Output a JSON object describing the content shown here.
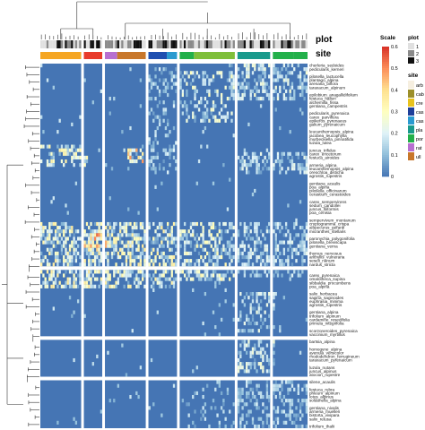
{
  "chart_data": {
    "type": "heatmap",
    "title": "",
    "xlabel": "",
    "ylabel": "",
    "annotations": {
      "plot_title": "plot",
      "site_title": "site"
    },
    "column_groups": [
      {
        "id": 1,
        "columns": 20
      },
      {
        "id": 2,
        "columns": 9
      },
      {
        "id": 3,
        "columns": 20
      },
      {
        "id": 4,
        "columns": 14
      },
      {
        "id": 5,
        "columns": 27
      },
      {
        "id": 6,
        "columns": 16
      },
      {
        "id": 7,
        "columns": 17
      }
    ],
    "row_groups": [
      {
        "id": 1,
        "rows": 55
      },
      {
        "id": 2,
        "rows": 18
      },
      {
        "id": 3,
        "rows": 10
      },
      {
        "id": 4,
        "rows": 13
      }
    ],
    "species": [
      "cherleria_sedoides",
      "pedicularis_kerneri",
      "pilosella_lactucella",
      "plantago_alpina",
      "arenaria_biflora",
      "taraxacum_alpinum",
      "epilobium_anagallidifolium",
      "festuca_halleri",
      "alchemilla_fissa",
      "gentiana_campestris",
      "pedicularis_pyrenaica",
      "carex_parviflora",
      "epikeros_pyrenaeus",
      "galium_pyrenaicum",
      "leucanthemopsis_alpina",
      "jacobea_leucophylla",
      "murbeckiella_pinnatifida",
      "luzula_lutea",
      "juncus_trifidus",
      "carex_ericetorum",
      "festuca_airoides",
      "armeria_alpina",
      "leucanthemopsis_alpina",
      "oreochloa_disticha",
      "agrostis_rupestris",
      "gentiana_acaulis",
      "poa_alpina",
      "pilosella_officinarum",
      "cerastium_cerastoides",
      "carex_sempervirens",
      "sedum_candollei",
      "juncus_filiformis",
      "poa_cenisia",
      "sempervivum_montanum",
      "cryptogramma_crispa",
      "alopecurus_gerardi",
      "micranthes_stellaris",
      "paronychia_polygonifolia",
      "pilosella_breviscapa",
      "gentiana_verna",
      "thymus_nervosus",
      "anthyllis_vulneraria",
      "seseli_nanum",
      "nardus_stricta",
      "carex_pyrenaica",
      "omalotheca_supina",
      "sibbaldia_procumbens",
      "poa_alpina",
      "salix_herbacea",
      "sagina_saginoides",
      "euphrasia_minima",
      "agrostis_rupestris",
      "gentiana_alpina",
      "trifolium_alpinum",
      "cardamine_resedifolia",
      "primula_integrifolia",
      "scorzoneroides_pyrenaica",
      "vaccinium_myrtillus",
      "bartsia_alpina",
      "homogyne_alpina",
      "avenula_versicolor",
      "rhododendron_ferrugineum",
      "taraxacum_pyrenaicum",
      "luzula_nutans",
      "juncus_alpinus",
      "atocion_rupestre",
      "silene_acaulis",
      "festuca_rubra",
      "phleum_alpinum",
      "lotus_alpinus",
      "soldanella_alpina",
      "gentiana_nivalis",
      "armeria_muelleri",
      "bistorta_vivipara",
      "salix_retusa",
      "trifolium_thalii"
    ],
    "site_legend": {
      "title": "site",
      "entries": [
        {
          "label": "arb",
          "color": "#f6efe0"
        },
        {
          "label": "cab",
          "color": "#9c8f2a"
        },
        {
          "label": "cre",
          "color": "#e8c21c"
        },
        {
          "label": "cas",
          "color": "#1e3f9a"
        },
        {
          "label": "cas",
          "color": "#2a9ad0"
        },
        {
          "label": "pla",
          "color": "#199a8c"
        },
        {
          "label": "por",
          "color": "#22b04a"
        },
        {
          "label": "rat",
          "color": "#b76fd0"
        },
        {
          "label": "ull",
          "color": "#c8772b"
        }
      ]
    },
    "site_bar_colors": [
      "#f5a623",
      "#e83b2b",
      "#b76fd0",
      "#c8772b",
      "#1e4fb0",
      "#2a9ad0",
      "#22b04a",
      "#7fbf3a",
      "#199a8c",
      "#22b04a",
      "#22b04a"
    ],
    "plot_legend": {
      "title": "plot",
      "entries": [
        {
          "label": "1",
          "color": "#e0e0e0"
        },
        {
          "label": "2",
          "color": "#8a8a8a"
        },
        {
          "label": "3",
          "color": "#111111"
        }
      ]
    },
    "color_scale": {
      "title": "Scale",
      "min": 0,
      "max": 0.6,
      "ticks": [
        0,
        0.1,
        0.2,
        0.3,
        0.4,
        0.5,
        0.6
      ],
      "tick_labels": [
        "0",
        "0.1",
        "0.2",
        "0.3",
        "0.4",
        "0.5",
        "0.6"
      ],
      "colors": [
        "#4575b4",
        "#91bfdb",
        "#e0f3f8",
        "#ffffbf",
        "#fee090",
        "#fc8d59",
        "#d73027"
      ]
    },
    "values_note": "Cell values estimated; background cells ~0"
  }
}
